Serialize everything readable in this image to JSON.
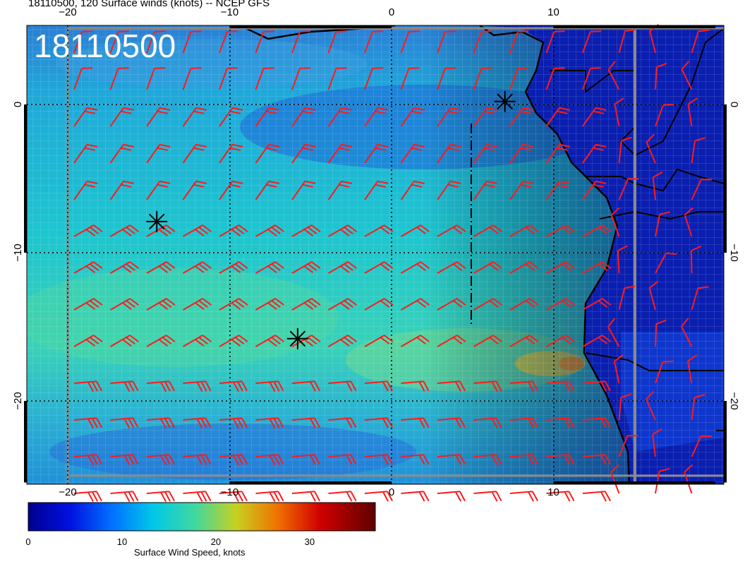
{
  "title": "18110500, 120 Surface winds (knots) -- NCEP GFS",
  "timestamp_label": "18110500",
  "axes": {
    "lon_ticks": [
      {
        "value": -20,
        "label": "−20"
      },
      {
        "value": -10,
        "label": "−10"
      },
      {
        "value": 0,
        "label": "0"
      },
      {
        "value": 10,
        "label": "10"
      }
    ],
    "lat_ticks": [
      {
        "value": 0,
        "label": "0"
      },
      {
        "value": -10,
        "label": "−10"
      },
      {
        "value": -20,
        "label": "−20"
      }
    ],
    "lon_range": [
      -22.5,
      20.5
    ],
    "lat_range": [
      -25.5,
      5.2
    ]
  },
  "colorbar": {
    "label": "Surface Wind Speed, knots",
    "ticks": [
      {
        "value": 0,
        "label": "0"
      },
      {
        "value": 10,
        "label": "10"
      },
      {
        "value": 20,
        "label": "20"
      },
      {
        "value": 30,
        "label": "30"
      }
    ],
    "range": [
      0,
      37
    ]
  },
  "markers": [
    {
      "name": "asterisk",
      "lon": 7,
      "lat": 0.2
    },
    {
      "name": "asterisk",
      "lon": -14.5,
      "lat": -7.9
    },
    {
      "name": "asterisk",
      "lon": -5.8,
      "lat": -15.8
    }
  ],
  "colors": {
    "barb": "#ff1a1a",
    "coast": "#000000",
    "gridline": "#000000"
  }
}
